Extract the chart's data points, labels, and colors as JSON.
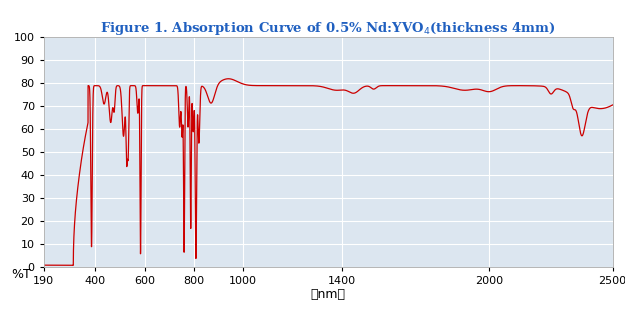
{
  "title": "Figure 1. Absorption Curve of 0.5% Nd:YVO$_4$(thickness 4mm)",
  "xlabel": "（nm）",
  "ylabel": "%T",
  "xlim": [
    190,
    2500
  ],
  "ylim": [
    0,
    100
  ],
  "xticks": [
    190,
    400,
    600,
    800,
    1000,
    1400,
    2000,
    2500
  ],
  "yticks": [
    0,
    10,
    20,
    30,
    40,
    50,
    60,
    70,
    80,
    90,
    100
  ],
  "line_color": "#cc0000",
  "bg_color": "#dce6f0",
  "title_color": "#2060c0",
  "grid_color": "#ffffff",
  "figure_bg": "#ffffff"
}
